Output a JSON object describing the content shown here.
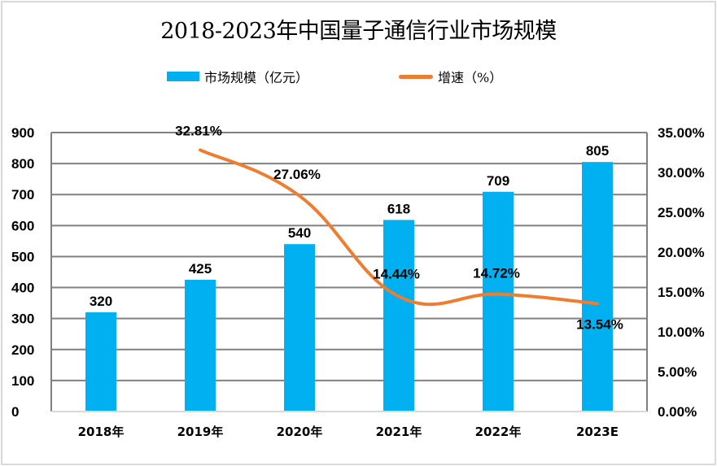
{
  "chart_data": {
    "type": "bar",
    "title": "2018-2023年中国量子通信行业市场规模",
    "categories": [
      "2018年",
      "2019年",
      "2020年",
      "2021年",
      "2022年",
      "2023E"
    ],
    "series": [
      {
        "name": "市场规模（亿元）",
        "type": "bar",
        "axis": "left",
        "color": "#00b0f0",
        "values": [
          320,
          425,
          540,
          618,
          709,
          805
        ],
        "labels": [
          "320",
          "425",
          "540",
          "618",
          "709",
          "805"
        ]
      },
      {
        "name": "增速（%）",
        "type": "line",
        "axis": "right",
        "color": "#ed7d31",
        "values": [
          null,
          32.81,
          27.06,
          14.44,
          14.72,
          13.54
        ],
        "labels": [
          "",
          "32.81%",
          "27.06%",
          "14.44%",
          "14.72%",
          "13.54%"
        ]
      }
    ],
    "left_axis": {
      "ylim": [
        0,
        900
      ],
      "ticks": [
        0,
        100,
        200,
        300,
        400,
        500,
        600,
        700,
        800,
        900
      ],
      "tick_labels": [
        "0",
        "100",
        "200",
        "300",
        "400",
        "500",
        "600",
        "700",
        "800",
        "900"
      ]
    },
    "right_axis": {
      "ylim": [
        0,
        35
      ],
      "ticks": [
        0,
        5,
        10,
        15,
        20,
        25,
        30,
        35
      ],
      "tick_labels": [
        "0.00%",
        "5.00%",
        "10.00%",
        "15.00%",
        "20.00%",
        "25.00%",
        "30.00%",
        "35.00%"
      ]
    },
    "xlabel": "",
    "ylabel": "",
    "grid": true,
    "legend_position": "top-center"
  },
  "legend": {
    "bar_label": "市场规模（亿元）",
    "line_label": "增速（%）"
  }
}
